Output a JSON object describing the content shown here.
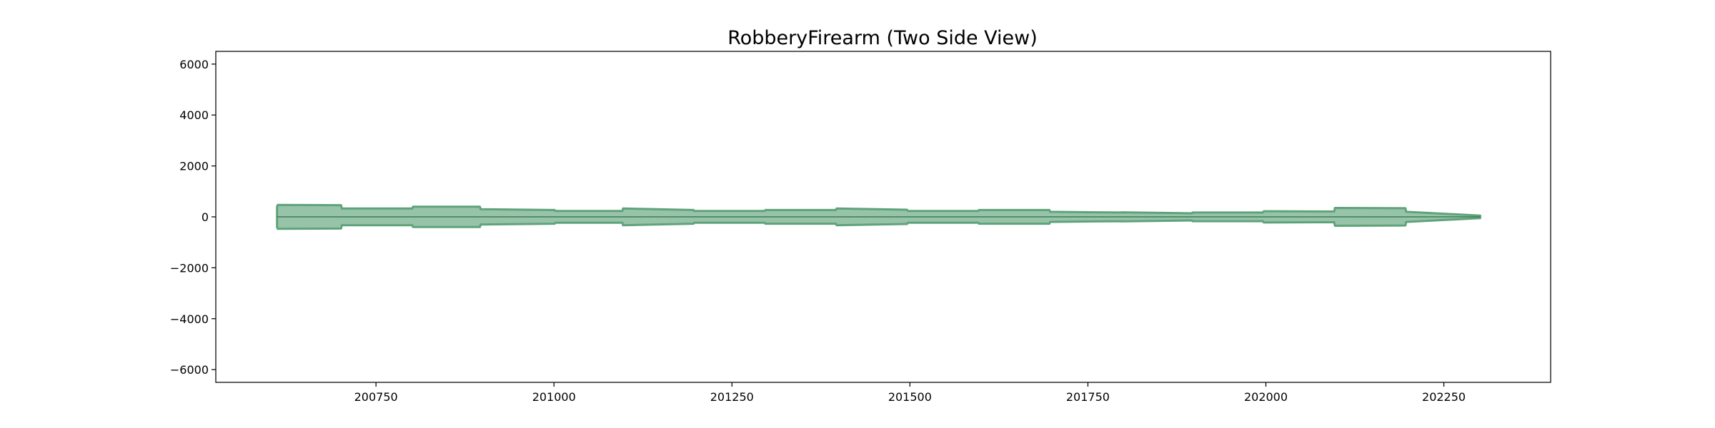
{
  "chart_data": {
    "type": "area",
    "title": "RobberyFirearm (Two Side View)",
    "xlabel": "",
    "ylabel": "",
    "xlim": [
      200525,
      202400
    ],
    "ylim": [
      -6500,
      6500
    ],
    "xticks": [
      200750,
      201000,
      201250,
      201500,
      201750,
      202000,
      202250
    ],
    "xtick_labels": [
      "200750",
      "201000",
      "201250",
      "201500",
      "201750",
      "202000",
      "202250"
    ],
    "yticks": [
      6000,
      4000,
      2000,
      0,
      -2000,
      -4000,
      -6000
    ],
    "ytick_labels": [
      "6000",
      "4000",
      "2000",
      "0",
      "−2000",
      "−4000",
      "−6000"
    ],
    "grid": false,
    "legend": "none",
    "color": "#5fa37b",
    "symmetric": true,
    "series": [
      {
        "x": [
          200611,
          200612,
          200701,
          200702,
          200801,
          200802,
          200896,
          200897,
          201001,
          201002,
          201096,
          201097,
          201196,
          201197,
          201296,
          201297,
          201396,
          201397,
          201496,
          201497,
          201596,
          201597,
          201696,
          201697,
          201796,
          201797,
          201896,
          201897,
          201996,
          201997,
          202096,
          202097,
          202196,
          202197,
          202301
        ],
        "values": [
          400,
          470,
          460,
          330,
          330,
          400,
          400,
          300,
          270,
          230,
          230,
          330,
          270,
          230,
          230,
          270,
          270,
          330,
          280,
          230,
          230,
          270,
          270,
          200,
          170,
          180,
          140,
          170,
          170,
          220,
          210,
          350,
          340,
          200,
          50
        ]
      }
    ]
  }
}
